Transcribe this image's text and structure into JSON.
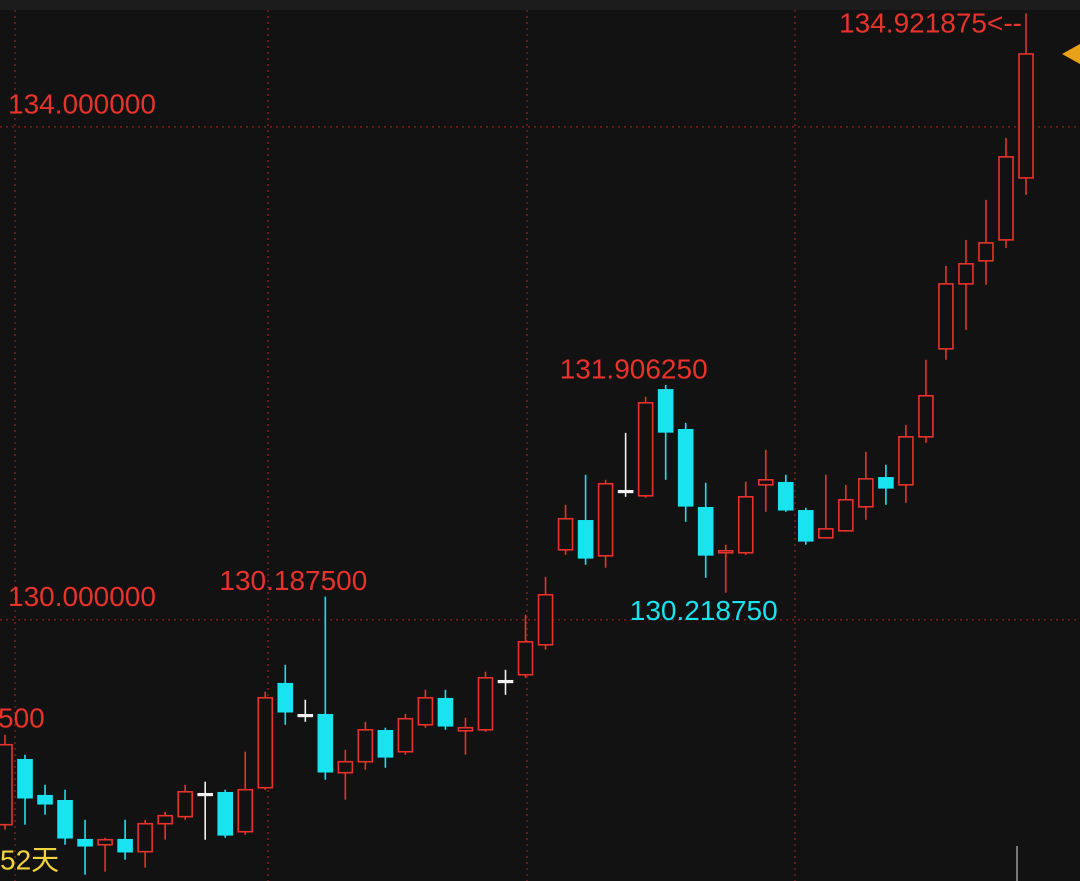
{
  "chart_data": {
    "type": "candlestick",
    "colors": {
      "up": "#e8322c",
      "down": "#19e3ef",
      "unchanged": "#f2f2f2"
    },
    "grid": true,
    "ylim": [
      127.88,
      135.03
    ],
    "yticks": [
      {
        "value": 130,
        "label": "130.000000"
      },
      {
        "value": 134,
        "label": "134.000000"
      }
    ],
    "open": [
      128.337,
      128.864,
      128.572,
      128.531,
      128.215,
      128.174,
      128.215,
      128.118,
      128.345,
      128.402,
      128.588,
      128.596,
      128.28,
      128.637,
      129.481,
      129.229,
      129.229,
      128.759,
      128.848,
      129.099,
      128.929,
      129.148,
      129.359,
      129.099,
      129.107,
      129.505,
      129.554,
      129.797,
      130.568,
      130.803,
      130.519,
      131.047,
      131.006,
      131.866,
      131.542,
      130.909,
      130.544,
      130.544,
      131.095,
      131.112,
      130.884,
      130.665,
      130.722,
      130.917,
      131.152,
      131.095,
      131.485,
      132.199,
      132.726,
      132.913,
      133.083,
      133.586
    ],
    "high": [
      129.067,
      128.905,
      128.661,
      128.621,
      128.377,
      128.231,
      128.377,
      128.377,
      128.442,
      128.661,
      128.686,
      128.621,
      128.929,
      129.416,
      129.635,
      129.351,
      130.1875,
      128.945,
      129.172,
      129.124,
      129.237,
      129.432,
      129.432,
      129.205,
      129.578,
      129.594,
      130.041,
      130.349,
      130.933,
      131.177,
      131.136,
      131.517,
      131.809,
      131.90625,
      131.598,
      131.112,
      130.609,
      131.12,
      131.379,
      131.177,
      130.909,
      131.177,
      131.095,
      131.363,
      131.258,
      131.582,
      132.11,
      132.872,
      133.083,
      133.408,
      133.911,
      134.921875
    ],
    "low": [
      128.296,
      128.337,
      128.418,
      128.174,
      127.931,
      127.955,
      128.053,
      127.988,
      128.215,
      128.377,
      128.215,
      128.231,
      128.255,
      128.621,
      129.148,
      129.172,
      128.702,
      128.54,
      128.783,
      128.799,
      128.905,
      129.124,
      129.107,
      128.905,
      129.091,
      129.391,
      129.529,
      129.757,
      130.527,
      130.446,
      130.422,
      130.998,
      130.99,
      131.136,
      130.795,
      130.341,
      130.21875,
      130.527,
      130.876,
      130.876,
      130.609,
      130.665,
      130.714,
      130.811,
      130.933,
      130.949,
      131.436,
      132.11,
      132.353,
      132.718,
      133.018,
      133.448
    ],
    "close": [
      128.986,
      128.556,
      128.507,
      128.231,
      128.166,
      128.215,
      128.118,
      128.345,
      128.41,
      128.604,
      128.588,
      128.255,
      128.621,
      129.367,
      129.254,
      129.229,
      128.767,
      128.848,
      129.107,
      128.888,
      129.197,
      129.367,
      129.14,
      129.124,
      129.529,
      129.505,
      129.821,
      130.203,
      130.82,
      130.503,
      131.104,
      131.047,
      131.761,
      131.525,
      130.925,
      130.527,
      130.56,
      130.998,
      131.136,
      130.893,
      130.641,
      130.738,
      130.974,
      131.144,
      131.071,
      131.485,
      131.818,
      132.726,
      132.889,
      133.059,
      133.757,
      134.592
    ],
    "annotations": [
      {
        "value": 134.921875,
        "label": "134.921875<--"
      },
      {
        "value": 131.90625,
        "label": "131.906250"
      },
      {
        "value": 130.1875,
        "label": "130.187500"
      },
      {
        "value": 130.21875,
        "label": "130.218750"
      }
    ],
    "cut_label": "500",
    "period_label": "52天"
  }
}
